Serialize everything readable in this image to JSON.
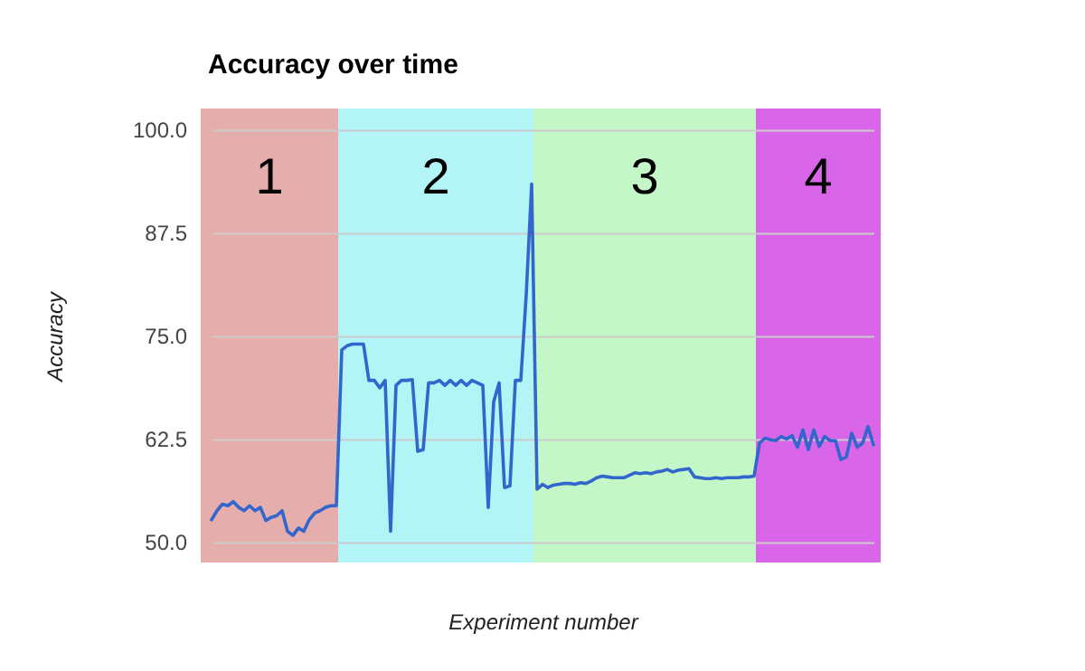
{
  "chart_data": {
    "type": "line",
    "title": "Accuracy over time",
    "xlabel": "Experiment number",
    "ylabel": "Accuracy",
    "categories": [
      null,
      null,
      null,
      null,
      null,
      null,
      null,
      null,
      null,
      null,
      null,
      null,
      null,
      null,
      null,
      null,
      null,
      null,
      null,
      null,
      null,
      null,
      null,
      null,
      null,
      null,
      null,
      null,
      null,
      null,
      null,
      null,
      null,
      null,
      null,
      null,
      null,
      null,
      null,
      null,
      null,
      null,
      null,
      null,
      null,
      null,
      null,
      null,
      null,
      null,
      null,
      null,
      null,
      null,
      null,
      null,
      null,
      null,
      null,
      null,
      null,
      null,
      null,
      null,
      null,
      null,
      null,
      null,
      null,
      null,
      null,
      null,
      null,
      null,
      null,
      null,
      null,
      null,
      null,
      null,
      null,
      null,
      null,
      null,
      null,
      null,
      null,
      null,
      null,
      null,
      null,
      null,
      null,
      null,
      null,
      null,
      null,
      null,
      null,
      null,
      null,
      null,
      null,
      null,
      null,
      null,
      null,
      null,
      null,
      null,
      null,
      null,
      null,
      null,
      null,
      null,
      null,
      null,
      null,
      null,
      null,
      null,
      null
    ],
    "series": [
      {
        "color": "#3366cc",
        "values": [
          52.7,
          53.8,
          54.6,
          54.4,
          54.9,
          54.2,
          53.8,
          54.4,
          53.8,
          54.2,
          52.6,
          53.0,
          53.2,
          53.8,
          51.3,
          50.8,
          51.7,
          51.3,
          52.7,
          53.5,
          53.8,
          54.2,
          54.4,
          54.4,
          73.3,
          73.8,
          74.0,
          74.0,
          74.0,
          69.6,
          69.6,
          68.7,
          69.6,
          51.3,
          69.0,
          69.6,
          69.6,
          69.7,
          61.0,
          61.2,
          69.3,
          69.3,
          69.6,
          69.0,
          69.6,
          69.0,
          69.6,
          69.0,
          69.6,
          69.3,
          69.0,
          54.2,
          67.0,
          69.3,
          56.6,
          56.8,
          69.6,
          69.6,
          80.0,
          93.4,
          56.4,
          57.0,
          56.6,
          56.9,
          57.0,
          57.1,
          57.1,
          57.0,
          57.2,
          57.1,
          57.4,
          57.8,
          58.0,
          57.9,
          57.8,
          57.8,
          57.8,
          58.1,
          58.4,
          58.3,
          58.4,
          58.3,
          58.5,
          58.6,
          58.8,
          58.5,
          58.7,
          58.8,
          58.9,
          57.9,
          57.8,
          57.7,
          57.7,
          57.8,
          57.7,
          57.8,
          57.8,
          57.8,
          57.9,
          57.9,
          58.0,
          62.0,
          62.6,
          62.4,
          62.3,
          62.8,
          62.5,
          62.9,
          61.5,
          63.6,
          61.2,
          63.6,
          61.6,
          62.8,
          62.3,
          62.3,
          60.0,
          60.3,
          63.2,
          61.5,
          62.0,
          64.0,
          61.8
        ]
      }
    ],
    "ylim": [
      50,
      100
    ],
    "yticks": [
      {
        "value": 50,
        "label": "50.0"
      },
      {
        "value": 62.5,
        "label": "62.5"
      },
      {
        "value": 75,
        "label": "75.0"
      },
      {
        "value": 87.5,
        "label": "87.5"
      },
      {
        "value": 100,
        "label": "100.0"
      }
    ],
    "grid": "y",
    "tick_labels": "y",
    "annotations": [
      "1",
      "2",
      "3",
      "4"
    ]
  }
}
